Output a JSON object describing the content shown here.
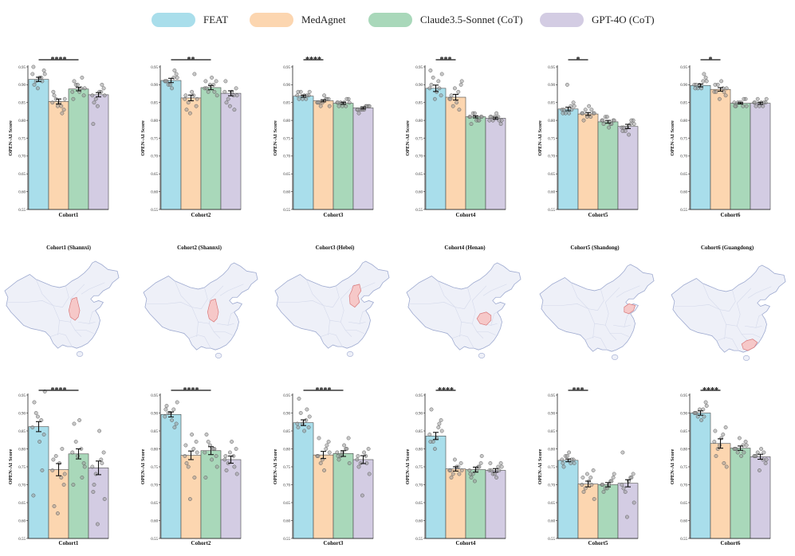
{
  "chart_data": {
    "type": "bar",
    "legend": [
      "FEAT",
      "MedAgnet",
      "Claude3.5-Sonnet (CoT)",
      "GPT-4O (CoT)"
    ],
    "colors": [
      "#a9deeb",
      "#fcd6b0",
      "#a9d8ba",
      "#d3cce3"
    ],
    "ylabel": "OPEN-AI Score",
    "ylim": [
      0.55,
      0.95
    ],
    "yticks": [
      0.55,
      0.6,
      0.65,
      0.7,
      0.75,
      0.8,
      0.85,
      0.9,
      0.95
    ],
    "panels": [
      {
        "xlabel": "Cohort1",
        "values": [
          0.915,
          0.853,
          0.888,
          0.872
        ],
        "errors": [
          0.006,
          0.007,
          0.005,
          0.006
        ],
        "significance": {
          "between": [
            0,
            2
          ],
          "label": "****"
        },
        "points": [
          [
            0.93,
            0.92,
            0.91,
            0.94,
            0.9,
            0.92,
            0.93,
            0.89,
            0.91,
            0.95
          ],
          [
            0.85,
            0.84,
            0.86,
            0.83,
            0.87,
            0.85,
            0.86,
            0.84,
            0.82,
            0.88
          ],
          [
            0.88,
            0.89,
            0.9,
            0.87,
            0.91,
            0.88,
            0.89,
            0.9,
            0.92,
            0.86
          ],
          [
            0.87,
            0.88,
            0.86,
            0.89,
            0.85,
            0.88,
            0.87,
            0.84,
            0.9,
            0.79
          ]
        ]
      },
      {
        "xlabel": "Cohort2",
        "values": [
          0.912,
          0.863,
          0.892,
          0.876
        ],
        "errors": [
          0.006,
          0.008,
          0.006,
          0.007
        ],
        "significance": {
          "between": [
            0,
            2
          ],
          "label": "**"
        },
        "points": [
          [
            0.91,
            0.92,
            0.9,
            0.93,
            0.91,
            0.89,
            0.92,
            0.9,
            0.94,
            0.91
          ],
          [
            0.86,
            0.87,
            0.85,
            0.84,
            0.83,
            0.88,
            0.86,
            0.82,
            0.93,
            0.87
          ],
          [
            0.89,
            0.9,
            0.88,
            0.91,
            0.89,
            0.92,
            0.87,
            0.9,
            0.88,
            0.91
          ],
          [
            0.88,
            0.87,
            0.86,
            0.89,
            0.85,
            0.88,
            0.87,
            0.84,
            0.83,
            0.91
          ]
        ]
      },
      {
        "xlabel": "Cohort3",
        "values": [
          0.868,
          0.855,
          0.848,
          0.835
        ],
        "errors": [
          0.003,
          0.003,
          0.003,
          0.003
        ],
        "significance": {
          "between": [
            0,
            1
          ],
          "label": "****"
        },
        "points": [
          [
            0.87,
            0.86,
            0.88,
            0.87,
            0.86,
            0.87,
            0.88,
            0.86,
            0.87,
            0.88
          ],
          [
            0.85,
            0.86,
            0.84,
            0.86,
            0.85,
            0.87,
            0.84,
            0.85,
            0.86,
            0.85
          ],
          [
            0.85,
            0.84,
            0.85,
            0.86,
            0.84,
            0.85,
            0.85,
            0.84,
            0.86,
            0.85
          ],
          [
            0.83,
            0.84,
            0.83,
            0.84,
            0.82,
            0.83,
            0.84,
            0.83,
            0.84,
            0.83
          ]
        ]
      },
      {
        "xlabel": "Cohort4",
        "values": [
          0.89,
          0.865,
          0.81,
          0.806
        ],
        "errors": [
          0.009,
          0.008,
          0.003,
          0.003
        ],
        "significance": {
          "between": [
            0,
            1
          ],
          "label": "***"
        },
        "points": [
          [
            0.89,
            0.91,
            0.92,
            0.87,
            0.9,
            0.88,
            0.93,
            0.86,
            0.89,
            0.94
          ],
          [
            0.86,
            0.88,
            0.84,
            0.9,
            0.87,
            0.85,
            0.91,
            0.89,
            0.83,
            0.86
          ],
          [
            0.81,
            0.8,
            0.82,
            0.81,
            0.79,
            0.8,
            0.81,
            0.82,
            0.8,
            0.81
          ],
          [
            0.8,
            0.81,
            0.8,
            0.79,
            0.81,
            0.82,
            0.8,
            0.81,
            0.8,
            0.81
          ]
        ]
      },
      {
        "xlabel": "Cohort5",
        "values": [
          0.832,
          0.818,
          0.796,
          0.783
        ],
        "errors": [
          0.005,
          0.004,
          0.004,
          0.006
        ],
        "significance": {
          "between": [
            0,
            1
          ],
          "label": "*"
        },
        "points": [
          [
            0.83,
            0.84,
            0.82,
            0.85,
            0.83,
            0.82,
            0.84,
            0.9,
            0.83,
            0.82
          ],
          [
            0.82,
            0.81,
            0.83,
            0.82,
            0.8,
            0.84,
            0.82,
            0.81,
            0.83,
            0.82
          ],
          [
            0.8,
            0.79,
            0.81,
            0.8,
            0.79,
            0.78,
            0.8,
            0.81,
            0.79,
            0.8
          ],
          [
            0.78,
            0.79,
            0.77,
            0.8,
            0.78,
            0.76,
            0.79,
            0.78,
            0.8,
            0.77
          ]
        ]
      },
      {
        "xlabel": "Cohort6",
        "values": [
          0.898,
          0.887,
          0.848,
          0.848
        ],
        "errors": [
          0.004,
          0.005,
          0.002,
          0.003
        ],
        "significance": {
          "between": [
            0,
            1
          ],
          "label": "*"
        },
        "points": [
          [
            0.9,
            0.91,
            0.89,
            0.92,
            0.9,
            0.89,
            0.91,
            0.9,
            0.93,
            0.89
          ],
          [
            0.88,
            0.89,
            0.9,
            0.87,
            0.88,
            0.91,
            0.89,
            0.86,
            0.88,
            0.9
          ],
          [
            0.85,
            0.84,
            0.85,
            0.86,
            0.84,
            0.85,
            0.84,
            0.85,
            0.86,
            0.84
          ],
          [
            0.85,
            0.84,
            0.86,
            0.85,
            0.84,
            0.85,
            0.86,
            0.84,
            0.85,
            0.85
          ]
        ]
      },
      {
        "xlabel": "Cohort1",
        "values": [
          0.862,
          0.742,
          0.786,
          0.747
        ],
        "errors": [
          0.014,
          0.017,
          0.014,
          0.019
        ],
        "significance": {
          "between": [
            0,
            2
          ],
          "label": "****"
        },
        "points": [
          [
            0.86,
            0.88,
            0.9,
            0.84,
            0.93,
            0.82,
            0.96,
            0.89,
            0.74,
            0.67
          ],
          [
            0.74,
            0.72,
            0.78,
            0.7,
            0.64,
            0.76,
            0.73,
            0.62,
            0.8,
            0.77
          ],
          [
            0.79,
            0.8,
            0.82,
            0.76,
            0.87,
            0.88,
            0.75,
            0.78,
            0.72,
            0.7
          ],
          [
            0.75,
            0.77,
            0.73,
            0.79,
            0.7,
            0.85,
            0.66,
            0.59,
            0.76,
            0.68
          ]
        ]
      },
      {
        "xlabel": "Cohort2",
        "values": [
          0.896,
          0.782,
          0.795,
          0.77
        ],
        "errors": [
          0.007,
          0.012,
          0.011,
          0.01
        ],
        "significance": {
          "between": [
            0,
            2
          ],
          "label": "****"
        },
        "points": [
          [
            0.89,
            0.91,
            0.9,
            0.87,
            0.92,
            0.88,
            0.93,
            0.9,
            0.86,
            0.91
          ],
          [
            0.78,
            0.8,
            0.75,
            0.82,
            0.76,
            0.84,
            0.79,
            0.66,
            0.72,
            0.81
          ],
          [
            0.79,
            0.8,
            0.82,
            0.78,
            0.84,
            0.77,
            0.75,
            0.81,
            0.8,
            0.72
          ],
          [
            0.77,
            0.78,
            0.76,
            0.8,
            0.74,
            0.82,
            0.73,
            0.79,
            0.75,
            0.78
          ]
        ]
      },
      {
        "xlabel": "Cohort3",
        "values": [
          0.873,
          0.783,
          0.787,
          0.77
        ],
        "errors": [
          0.008,
          0.01,
          0.008,
          0.011
        ],
        "significance": {
          "between": [
            0,
            2
          ],
          "label": "****"
        },
        "points": [
          [
            0.87,
            0.88,
            0.9,
            0.86,
            0.94,
            0.85,
            0.89,
            0.87,
            0.91,
            0.86
          ],
          [
            0.78,
            0.8,
            0.76,
            0.82,
            0.83,
            0.74,
            0.79,
            0.77,
            0.81,
            0.78
          ],
          [
            0.79,
            0.8,
            0.78,
            0.83,
            0.77,
            0.81,
            0.76,
            0.79,
            0.8,
            0.78
          ],
          [
            0.77,
            0.78,
            0.76,
            0.8,
            0.75,
            0.79,
            0.73,
            0.67,
            0.76,
            0.78
          ]
        ]
      },
      {
        "xlabel": "Cohort4",
        "values": [
          0.836,
          0.744,
          0.742,
          0.74
        ],
        "errors": [
          0.01,
          0.006,
          0.007,
          0.005
        ],
        "significance": {
          "between": [
            0,
            1
          ],
          "label": "****"
        },
        "points": [
          [
            0.84,
            0.86,
            0.82,
            0.88,
            0.91,
            0.83,
            0.85,
            0.8,
            0.87,
            0.82
          ],
          [
            0.74,
            0.75,
            0.73,
            0.76,
            0.72,
            0.75,
            0.74,
            0.77,
            0.73,
            0.74
          ],
          [
            0.74,
            0.75,
            0.73,
            0.76,
            0.72,
            0.74,
            0.78,
            0.71,
            0.75,
            0.73
          ],
          [
            0.74,
            0.75,
            0.73,
            0.76,
            0.74,
            0.72,
            0.75,
            0.73,
            0.74,
            0.76
          ]
        ]
      },
      {
        "xlabel": "Cohort5",
        "values": [
          0.768,
          0.702,
          0.7,
          0.704
        ],
        "errors": [
          0.004,
          0.008,
          0.006,
          0.01
        ],
        "significance": {
          "between": [
            0,
            1
          ],
          "label": "***"
        },
        "points": [
          [
            0.77,
            0.76,
            0.78,
            0.77,
            0.75,
            0.79,
            0.76,
            0.78,
            0.77,
            0.76
          ],
          [
            0.7,
            0.72,
            0.69,
            0.74,
            0.68,
            0.71,
            0.66,
            0.73,
            0.7,
            0.72
          ],
          [
            0.7,
            0.71,
            0.69,
            0.72,
            0.68,
            0.7,
            0.73,
            0.69,
            0.71,
            0.7
          ],
          [
            0.7,
            0.72,
            0.68,
            0.73,
            0.69,
            0.71,
            0.65,
            0.61,
            0.72,
            0.79
          ]
        ]
      },
      {
        "xlabel": "Cohort6",
        "values": [
          0.9,
          0.815,
          0.802,
          0.778
        ],
        "errors": [
          0.006,
          0.013,
          0.006,
          0.007
        ],
        "significance": {
          "between": [
            0,
            1
          ],
          "label": "****"
        },
        "points": [
          [
            0.9,
            0.91,
            0.89,
            0.93,
            0.9,
            0.88,
            0.92,
            0.91,
            0.89,
            0.9
          ],
          [
            0.82,
            0.84,
            0.8,
            0.86,
            0.78,
            0.83,
            0.75,
            0.81,
            0.76,
            0.85
          ],
          [
            0.8,
            0.81,
            0.79,
            0.82,
            0.8,
            0.78,
            0.81,
            0.83,
            0.79,
            0.8
          ],
          [
            0.78,
            0.77,
            0.79,
            0.76,
            0.78,
            0.8,
            0.77,
            0.74,
            0.79,
            0.78
          ]
        ]
      }
    ]
  },
  "maps": [
    {
      "title": "Cohort1 (Shannxi)"
    },
    {
      "title": "Cohort2 (Shannxi)"
    },
    {
      "title": "Cohort3 (Hebei)"
    },
    {
      "title": "Cohort4 (Henan)"
    },
    {
      "title": "Cohort5 (Shandong)"
    },
    {
      "title": "Cohort6 (Guangdong)"
    }
  ],
  "map_colors": {
    "land": "#eef0f8",
    "border": "#9eaad0",
    "inner": "#d3d8ea",
    "highlight": "#f6c8c8",
    "highlight_border": "#d9787a"
  }
}
